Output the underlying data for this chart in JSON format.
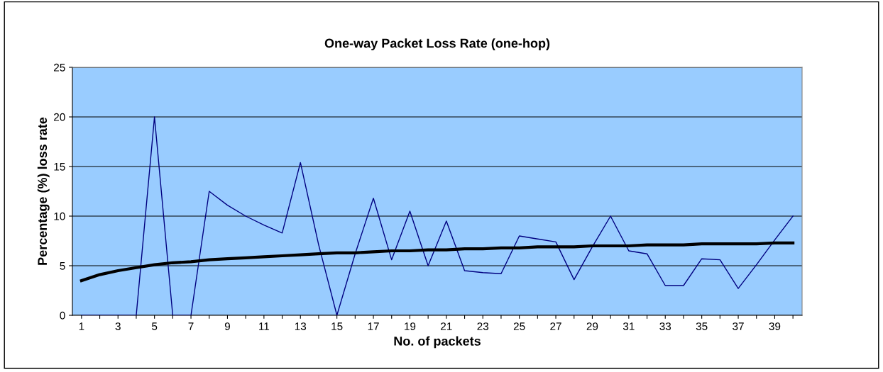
{
  "chart_data": {
    "type": "line",
    "title": "One-way Packet Loss Rate (one-hop)",
    "xlabel": "No. of packets",
    "ylabel": "Percentage (%) loss rate",
    "categories": [
      "1",
      null,
      "3",
      null,
      "5",
      null,
      "7",
      null,
      "9",
      null,
      "11",
      null,
      "13",
      null,
      "15",
      null,
      "17",
      null,
      "19",
      null,
      "21",
      null,
      "23",
      null,
      "25",
      null,
      "27",
      null,
      "29",
      null,
      "31",
      null,
      "33",
      null,
      "35",
      null,
      "37",
      null,
      "39",
      null
    ],
    "series": [
      {
        "color": "#000080",
        "values": [
          0,
          0,
          0,
          0,
          20,
          0,
          0,
          12.5,
          11.1,
          10,
          9.1,
          8.3,
          15.4,
          7.1,
          0,
          6.2,
          11.8,
          5.6,
          10.5,
          5,
          9.5,
          4.5,
          4.3,
          4.2,
          8,
          7.7,
          7.4,
          3.6,
          6.9,
          10,
          6.5,
          6.2,
          3,
          3,
          5.7,
          5.6,
          2.7,
          5.1,
          7.6,
          10
        ]
      },
      {
        "color": "#000000",
        "values": [
          3.5,
          4.1,
          4.5,
          4.8,
          5.1,
          5.3,
          5.4,
          5.6,
          5.7,
          5.8,
          5.9,
          6.0,
          6.1,
          6.2,
          6.3,
          6.3,
          6.4,
          6.5,
          6.5,
          6.6,
          6.6,
          6.7,
          6.7,
          6.8,
          6.8,
          6.9,
          6.9,
          6.9,
          7.0,
          7.0,
          7.0,
          7.1,
          7.1,
          7.1,
          7.2,
          7.2,
          7.2,
          7.2,
          7.3,
          7.3
        ]
      }
    ],
    "ylim": [
      0,
      25
    ],
    "yticks": [
      0,
      5,
      10,
      15,
      20,
      25
    ],
    "grid": "y",
    "legend": false
  }
}
